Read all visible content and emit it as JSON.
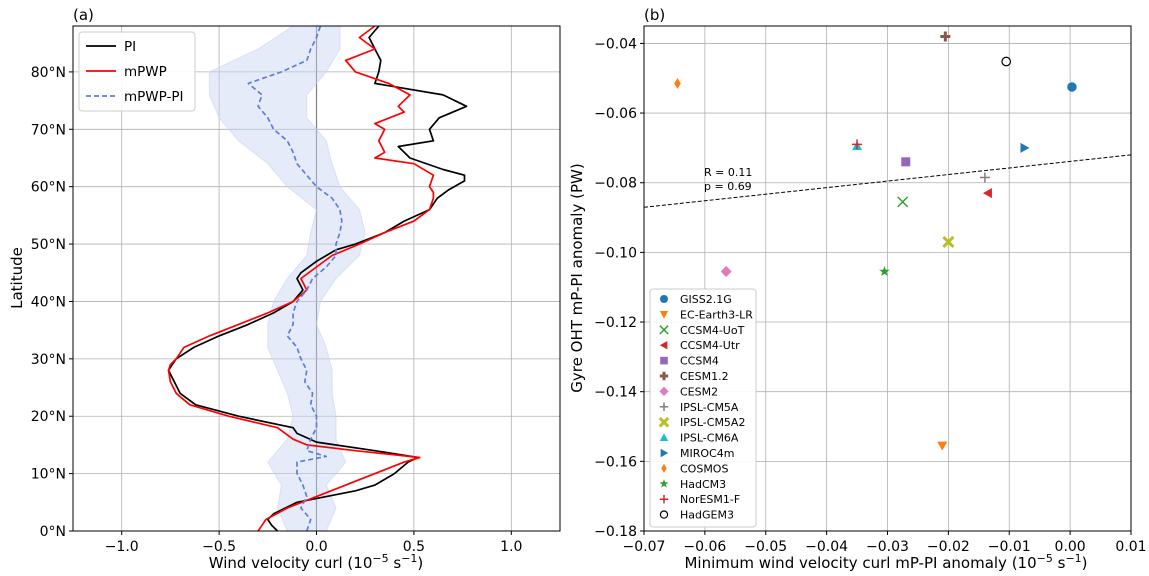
{
  "chart_data": [
    {
      "type": "line",
      "panel_label": "(a)",
      "xlabel": "Wind velocity curl (10$^{-5}$ s$^{-1}$)",
      "xlabel_base": "Wind velocity curl (10",
      "xlabel_exp": "−5",
      "xlabel_tail": " s",
      "xlabel_exp2": "−1",
      "xlabel_end": ")",
      "ylabel": "Latitude",
      "xlim": [
        -1.25,
        1.25
      ],
      "ylim": [
        0,
        88
      ],
      "xticks": [
        -1.0,
        -0.5,
        0.0,
        0.5,
        1.0
      ],
      "xtick_labels": [
        "−1.0",
        "−0.5",
        "0.0",
        "0.5",
        "1.0"
      ],
      "yticks": [
        0,
        10,
        20,
        30,
        40,
        50,
        60,
        70,
        80
      ],
      "ytick_labels": [
        "0°N",
        "10°N",
        "20°N",
        "30°N",
        "40°N",
        "50°N",
        "60°N",
        "70°N",
        "80°N"
      ],
      "grid": true,
      "legend_position": "top-left",
      "series": [
        {
          "name": "PI",
          "color": "#000000",
          "style": "solid",
          "lat": [
            0,
            1,
            2,
            3,
            5,
            6,
            7,
            8,
            10,
            12,
            12.8,
            14,
            15.5,
            17,
            18,
            20,
            22,
            24,
            26,
            28,
            30,
            32,
            34,
            36,
            38,
            40,
            42,
            44,
            45,
            47,
            49,
            50,
            52,
            54,
            56,
            58,
            59.5,
            61,
            62,
            63,
            65,
            67,
            68,
            70,
            72,
            74,
            76,
            78,
            80,
            82,
            84,
            86,
            88
          ],
          "values": [
            -0.2,
            -0.23,
            -0.25,
            -0.22,
            -0.1,
            0.05,
            0.2,
            0.3,
            0.4,
            0.47,
            0.52,
            0.3,
            0.0,
            -0.1,
            -0.12,
            -0.4,
            -0.62,
            -0.7,
            -0.73,
            -0.76,
            -0.72,
            -0.63,
            -0.5,
            -0.35,
            -0.22,
            -0.12,
            -0.07,
            -0.1,
            -0.08,
            0.0,
            0.1,
            0.2,
            0.35,
            0.45,
            0.58,
            0.62,
            0.68,
            0.76,
            0.76,
            0.65,
            0.48,
            0.42,
            0.6,
            0.58,
            0.63,
            0.77,
            0.65,
            0.3,
            0.32,
            0.33,
            0.3,
            0.27,
            0.32
          ]
        },
        {
          "name": "mPWP",
          "color": "#ff0000",
          "style": "solid",
          "lat": [
            0,
            1,
            2,
            4,
            6,
            8,
            10,
            12,
            12.8,
            14,
            15,
            16,
            18,
            20,
            22,
            24,
            26,
            28,
            29,
            30,
            32,
            34,
            36,
            38,
            40,
            42,
            44,
            46,
            48,
            50,
            52,
            54,
            56,
            58,
            59,
            60,
            62,
            64,
            65,
            66,
            68,
            70,
            71,
            73,
            74,
            76,
            78,
            80,
            82,
            84,
            86,
            88
          ],
          "values": [
            -0.3,
            -0.28,
            -0.26,
            -0.15,
            0.0,
            0.15,
            0.3,
            0.45,
            0.53,
            0.2,
            -0.05,
            -0.12,
            -0.2,
            -0.45,
            -0.65,
            -0.72,
            -0.75,
            -0.76,
            -0.75,
            -0.72,
            -0.68,
            -0.55,
            -0.4,
            -0.25,
            -0.12,
            -0.05,
            -0.08,
            0.0,
            0.08,
            0.22,
            0.35,
            0.5,
            0.58,
            0.6,
            0.6,
            0.58,
            0.6,
            0.5,
            0.3,
            0.35,
            0.32,
            0.35,
            0.3,
            0.45,
            0.42,
            0.48,
            0.37,
            0.2,
            0.15,
            0.3,
            0.22,
            0.3
          ]
        },
        {
          "name": "mPWP-PI",
          "color": "#5b7fd6",
          "style": "dashed",
          "lat": [
            0,
            2,
            4,
            6,
            8,
            10,
            12,
            13,
            14,
            16,
            18,
            20,
            22,
            24,
            26,
            28,
            30,
            32,
            34,
            36,
            38,
            40,
            42,
            44,
            46,
            48,
            50,
            52,
            54,
            56,
            58,
            60,
            62,
            64,
            66,
            68,
            70,
            72,
            74,
            76,
            78,
            80,
            82,
            84,
            86,
            88
          ],
          "values": [
            -0.05,
            -0.03,
            -0.08,
            -0.05,
            -0.07,
            -0.1,
            -0.1,
            0.05,
            -0.05,
            -0.03,
            0.0,
            0.0,
            -0.03,
            -0.02,
            -0.06,
            -0.05,
            -0.08,
            -0.1,
            -0.15,
            -0.12,
            -0.12,
            -0.1,
            -0.05,
            -0.02,
            0.05,
            0.1,
            0.1,
            0.12,
            0.13,
            0.12,
            0.08,
            0.0,
            -0.05,
            -0.1,
            -0.12,
            -0.15,
            -0.22,
            -0.25,
            -0.3,
            -0.28,
            -0.35,
            -0.18,
            -0.05,
            -0.03,
            0.0,
            0.02
          ]
        }
      ],
      "band": {
        "name": "mPWP-PI spread",
        "color": "#c8d3f2",
        "lat": [
          0,
          4,
          8,
          12,
          16,
          20,
          24,
          28,
          32,
          36,
          40,
          44,
          48,
          52,
          56,
          60,
          64,
          68,
          72,
          76,
          80,
          84,
          88
        ],
        "lower": [
          -0.15,
          -0.2,
          -0.18,
          -0.25,
          -0.15,
          -0.12,
          -0.15,
          -0.2,
          -0.25,
          -0.25,
          -0.22,
          -0.15,
          -0.05,
          -0.03,
          0.0,
          -0.15,
          -0.25,
          -0.4,
          -0.5,
          -0.55,
          -0.55,
          -0.3,
          -0.12
        ],
        "upper": [
          0.05,
          0.1,
          0.05,
          0.15,
          0.1,
          0.1,
          0.08,
          0.08,
          0.05,
          0.0,
          0.02,
          0.1,
          0.22,
          0.25,
          0.22,
          0.12,
          0.08,
          0.05,
          -0.05,
          -0.05,
          0.05,
          0.12,
          0.12
        ]
      }
    },
    {
      "type": "scatter",
      "panel_label": "(b)",
      "xlabel_base": "Minimum wind velocity curl mP-PI anomaly (10",
      "xlabel_exp": "−5",
      "xlabel_tail": " s",
      "xlabel_exp2": "−1",
      "xlabel_end": ")",
      "ylabel": "Gyre OHT mP-PI anomaly (PW)",
      "xlim": [
        -0.07,
        0.01
      ],
      "ylim": [
        -0.18,
        -0.035
      ],
      "xticks": [
        -0.07,
        -0.06,
        -0.05,
        -0.04,
        -0.03,
        -0.02,
        -0.01,
        0.0,
        0.01
      ],
      "xtick_labels": [
        "−0.07",
        "−0.06",
        "−0.05",
        "−0.04",
        "−0.03",
        "−0.02",
        "−0.01",
        "0.00",
        "0.01"
      ],
      "yticks": [
        -0.18,
        -0.16,
        -0.14,
        -0.12,
        -0.1,
        -0.08,
        -0.06,
        -0.04
      ],
      "ytick_labels": [
        "−0.18",
        "−0.16",
        "−0.14",
        "−0.12",
        "−0.10",
        "−0.08",
        "−0.06",
        "−0.04"
      ],
      "grid": true,
      "legend_position": "bottom-left",
      "annotation_r": "R = 0.11",
      "annotation_p": "p = 0.69",
      "regression_anchor": {
        "x": -0.075,
        "y": -0.088
      },
      "regression_anchor_end": {
        "x": 0.01,
        "y": -0.072
      },
      "points": [
        {
          "name": "GISS2.1G",
          "x": 0.0003,
          "y": -0.0525,
          "marker": "circle",
          "color": "#1f77b4"
        },
        {
          "name": "EC-Earth3-LR",
          "x": -0.021,
          "y": -0.1555,
          "marker": "triangle-down",
          "color": "#ff7f0e"
        },
        {
          "name": "CCSM4-UoT",
          "x": -0.0275,
          "y": -0.0855,
          "marker": "x",
          "color": "#2ca02c"
        },
        {
          "name": "CCSM4-Utr",
          "x": -0.0135,
          "y": -0.083,
          "marker": "triangle-left",
          "color": "#d62728"
        },
        {
          "name": "CCSM4",
          "x": -0.027,
          "y": -0.074,
          "marker": "square",
          "color": "#9467bd"
        },
        {
          "name": "CESM1.2",
          "x": -0.0205,
          "y": -0.038,
          "marker": "plus-thick",
          "color": "#8c564b"
        },
        {
          "name": "CESM2",
          "x": -0.0565,
          "y": -0.1055,
          "marker": "diamond",
          "color": "#e377c2"
        },
        {
          "name": "IPSL-CM5A",
          "x": -0.014,
          "y": -0.0785,
          "marker": "plus",
          "color": "#7f7f7f"
        },
        {
          "name": "IPSL-CM5A2",
          "x": -0.02,
          "y": -0.097,
          "marker": "x-thick",
          "color": "#bcbd22"
        },
        {
          "name": "IPSL-CM6A",
          "x": -0.035,
          "y": -0.0695,
          "marker": "triangle-up",
          "color": "#17becf"
        },
        {
          "name": "MIROC4m",
          "x": -0.0075,
          "y": -0.07,
          "marker": "triangle-right",
          "color": "#1f77b4"
        },
        {
          "name": "COSMOS",
          "x": -0.0645,
          "y": -0.0515,
          "marker": "thin-diamond",
          "color": "#ff7f0e"
        },
        {
          "name": "HadCM3",
          "x": -0.0305,
          "y": -0.1055,
          "marker": "star",
          "color": "#2ca02c"
        },
        {
          "name": "NorESM1-F",
          "x": -0.035,
          "y": -0.069,
          "marker": "plus",
          "color": "#d62728"
        },
        {
          "name": "HadGEM3",
          "x": -0.0105,
          "y": -0.0452,
          "marker": "circle-open",
          "color": "#000000"
        }
      ]
    }
  ]
}
